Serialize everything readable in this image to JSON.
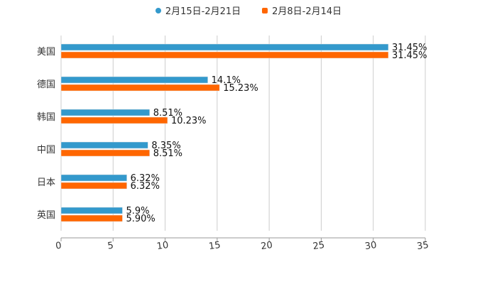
{
  "chart_data": {
    "type": "bar",
    "orientation": "horizontal",
    "categories": [
      "美国",
      "德国",
      "韩国",
      "中国",
      "日本",
      "英国"
    ],
    "series": [
      {
        "name": "2月15日-2月21日",
        "color": "#3399cc",
        "values": [
          31.45,
          14.1,
          8.51,
          8.35,
          6.32,
          5.9
        ],
        "labels": [
          "31.45%",
          "14.1%",
          "8.51%",
          "8.35%",
          "6.32%",
          "5.9%"
        ]
      },
      {
        "name": "2月8日-2月14日",
        "color": "#ff6600",
        "values": [
          31.45,
          15.23,
          10.23,
          8.51,
          6.32,
          5.9
        ],
        "labels": [
          "31.45%",
          "15.23%",
          "10.23%",
          "8.51%",
          "6.32%",
          "5.90%"
        ]
      }
    ],
    "xlim": [
      0,
      35
    ],
    "xticks": [
      "0",
      "5",
      "10",
      "15",
      "20",
      "25",
      "30",
      "35"
    ],
    "grid": true,
    "legend_position": "top-center",
    "title": "",
    "xlabel": "",
    "ylabel": ""
  }
}
